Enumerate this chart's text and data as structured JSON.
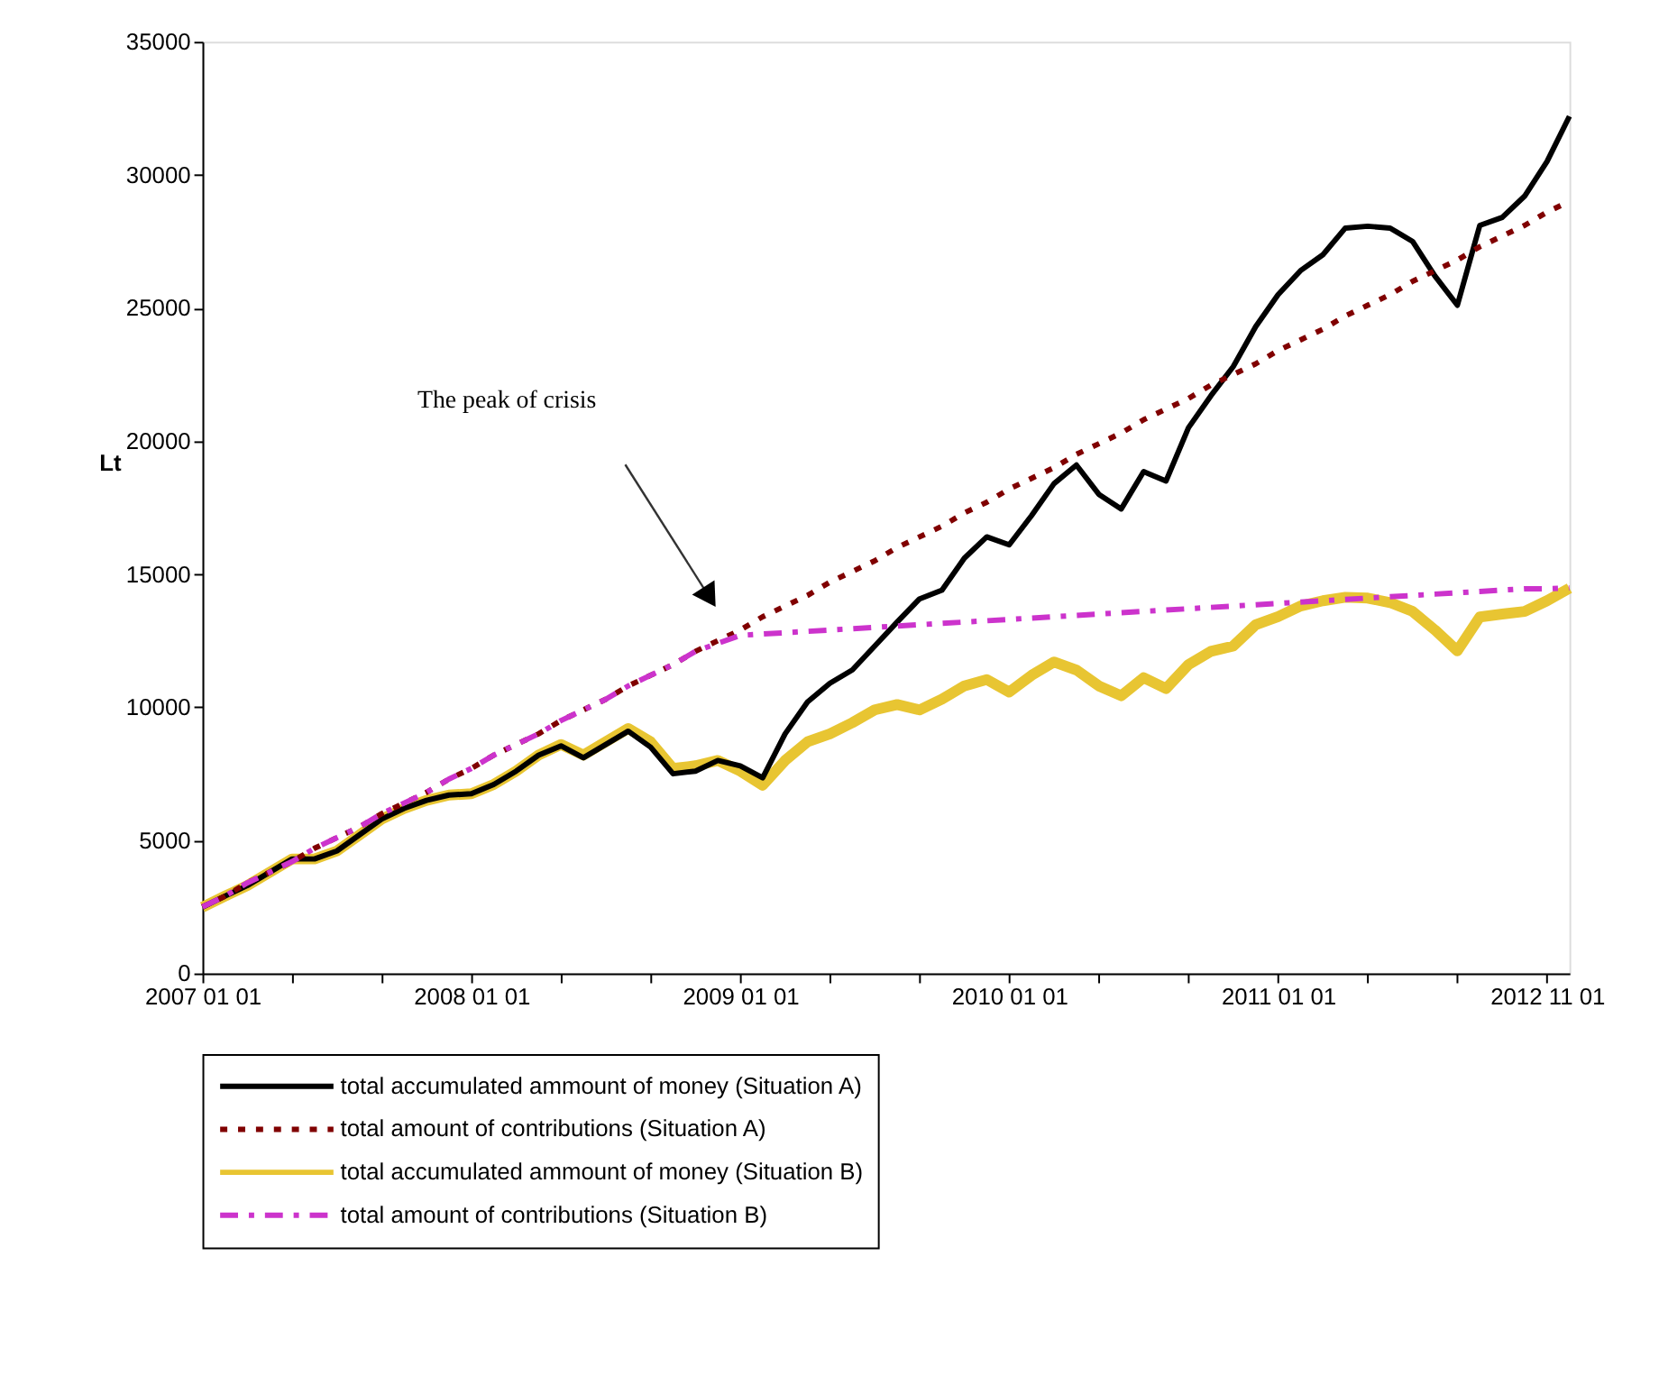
{
  "chart_data": {
    "type": "line",
    "ylabel": "Lt",
    "categories": [
      "2007 01 01",
      null,
      null,
      null,
      null,
      null,
      null,
      null,
      null,
      null,
      null,
      null,
      "2008 01 01",
      null,
      null,
      null,
      null,
      null,
      null,
      null,
      null,
      null,
      null,
      null,
      "2009 01 01",
      null,
      null,
      null,
      null,
      null,
      null,
      null,
      null,
      null,
      null,
      null,
      "2010 01 01",
      null,
      null,
      null,
      null,
      null,
      null,
      null,
      null,
      null,
      null,
      null,
      "2011 01 01",
      null,
      null,
      null,
      null,
      null,
      null,
      null,
      null,
      null,
      null,
      null,
      "2012 11 01",
      null
    ],
    "series": [
      {
        "name": "total accumulated ammount of money (Situation A)",
        "color": "#000000",
        "line_style": "solid",
        "values": [
          2490,
          2900,
          3300,
          3800,
          4300,
          4300,
          4600,
          5200,
          5800,
          6200,
          6500,
          6700,
          6750,
          7100,
          7600,
          8200,
          8550,
          8100,
          8600,
          9100,
          8500,
          7500,
          7600,
          8000,
          7800,
          7350,
          9000,
          10200,
          10900,
          11400,
          12300,
          13200,
          14070,
          14400,
          15600,
          16400,
          16100,
          17200,
          18400,
          19100,
          18000,
          17450,
          18850,
          18500,
          20500,
          21700,
          22800,
          24300,
          25500,
          26400,
          27000,
          28000,
          28070,
          28000,
          27500,
          26200,
          25100,
          28100,
          28400,
          29200,
          30500,
          32200
        ]
      },
      {
        "name": "total amount of contributions (Situation A)",
        "color": "#800000",
        "line_style": "dashed",
        "values": [
          2500,
          2900,
          3400,
          3800,
          4200,
          4700,
          5100,
          5500,
          6000,
          6400,
          6800,
          7300,
          7700,
          8200,
          8600,
          9000,
          9500,
          9900,
          10300,
          10800,
          11200,
          11600,
          12100,
          12500,
          12900,
          13400,
          13800,
          14200,
          14700,
          15100,
          15500,
          16000,
          16400,
          16800,
          17300,
          17700,
          18200,
          18600,
          19000,
          19500,
          19900,
          20300,
          20800,
          21200,
          21600,
          22100,
          22500,
          22900,
          23400,
          23800,
          24200,
          24700,
          25100,
          25500,
          26000,
          26400,
          26800,
          27300,
          27700,
          28100,
          28600,
          29000
        ]
      },
      {
        "name": "total accumulated ammount of money (Situation B)",
        "color": "#e8c532",
        "line_style": "solid",
        "values": [
          2490,
          2900,
          3300,
          3800,
          4300,
          4300,
          4600,
          5200,
          5800,
          6200,
          6500,
          6700,
          6750,
          7100,
          7600,
          8200,
          8600,
          8200,
          8700,
          9200,
          8700,
          7700,
          7800,
          8000,
          7600,
          7070,
          8000,
          8700,
          9000,
          9420,
          9900,
          10100,
          9900,
          10300,
          10800,
          11040,
          10570,
          11200,
          11700,
          11400,
          10800,
          10430,
          11110,
          10700,
          11600,
          12100,
          12300,
          13100,
          13400,
          13800,
          14000,
          14130,
          14100,
          13930,
          13600,
          12900,
          12120,
          13390,
          13500,
          13600,
          14000,
          14470
        ]
      },
      {
        "name": "total amount of contributions (Situation B)",
        "color": "#cc33cc",
        "line_style": "dashdot",
        "values": [
          2500,
          2900,
          3400,
          3800,
          4200,
          4700,
          5100,
          5500,
          6000,
          6400,
          6800,
          7300,
          7700,
          8200,
          8600,
          9000,
          9500,
          9900,
          10300,
          10800,
          11200,
          11600,
          12100,
          12400,
          12700,
          12750,
          12800,
          12850,
          12900,
          12950,
          13000,
          13050,
          13100,
          13150,
          13200,
          13250,
          13300,
          13350,
          13400,
          13450,
          13500,
          13550,
          13600,
          13650,
          13700,
          13750,
          13800,
          13850,
          13900,
          13950,
          14000,
          14050,
          14100,
          14150,
          14200,
          14250,
          14300,
          14350,
          14400,
          14450,
          14450,
          14480
        ]
      }
    ],
    "ylim": [
      0,
      35000
    ],
    "yticks": [
      0,
      5000,
      10000,
      15000,
      20000,
      25000,
      30000,
      35000
    ],
    "grid": false,
    "legend": "bottom",
    "marker": "none",
    "annotations": [
      "The peak of crisis"
    ]
  }
}
